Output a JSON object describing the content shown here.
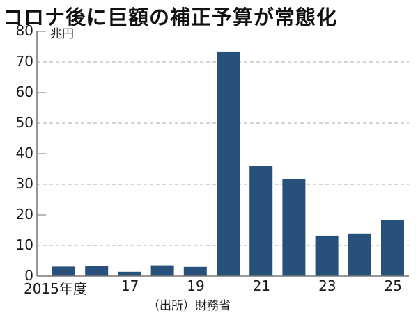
{
  "title": "コロナ後に巨額の補正予算が常態化",
  "unit_label": "兆円",
  "source": "（出所）財務省",
  "y_ticks": [
    "0",
    "10",
    "20",
    "30",
    "40",
    "50",
    "60",
    "70",
    "80"
  ],
  "x_tick_labels": [
    {
      "year": 2015,
      "label": "2015年度"
    },
    {
      "year": 2017,
      "label": "17"
    },
    {
      "year": 2019,
      "label": "19"
    },
    {
      "year": 2021,
      "label": "21"
    },
    {
      "year": 2023,
      "label": "23"
    },
    {
      "year": 2025,
      "label": "25"
    }
  ],
  "colors": {
    "bar": "#27507a",
    "axis": "#777777",
    "grid": "#aaaaaa"
  },
  "chart_data": {
    "type": "bar",
    "title": "コロナ後に巨額の補正予算が常態化",
    "xlabel": "年度",
    "ylabel": "兆円",
    "categories": [
      "2015",
      "2016",
      "2017",
      "2018",
      "2019",
      "2020",
      "2021",
      "2022",
      "2023",
      "2024",
      "2025"
    ],
    "values": [
      3.1,
      3.3,
      1.4,
      3.5,
      3.0,
      73.2,
      35.9,
      31.6,
      13.2,
      13.9,
      18.2
    ],
    "ylim": [
      0,
      80
    ],
    "y_ticks": [
      0,
      10,
      20,
      30,
      40,
      50,
      60,
      70,
      80
    ],
    "gridlines": [
      10,
      30,
      50,
      70
    ],
    "grid_style": "dashed",
    "source": "（出所）財務省",
    "legend": null
  }
}
